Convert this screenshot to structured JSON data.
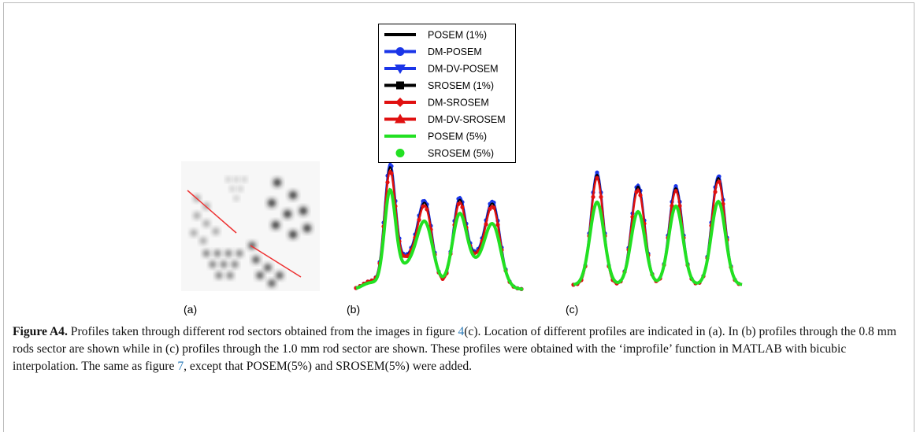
{
  "figure": {
    "legend": [
      "POSEM (1%)",
      "DM-POSEM",
      "DM-DV-POSEM",
      "SROSEM (1%)",
      "DM-SROSEM",
      "DM-DV-SROSEM",
      "POSEM (5%)",
      "SROSEM (5%)"
    ],
    "panel_labels": [
      "(a)",
      "(b)",
      "(c)"
    ],
    "caption": {
      "label": "Figure A4.",
      "parts": [
        " Profiles taken through different rod sectors obtained from the images in figure ",
        "4",
        "(c). Location of different profiles are indicated in (a). In (b) profiles through the 0.8 mm rods sector are shown while in (c) profiles through the 1.0 mm rod sector are shown. These profiles were obtained with the ‘improfile’ function in MATLAB with bicubic interpolation. The same as figure ",
        "7",
        ", except that POSEM(5%) and SROSEM(5%) were added."
      ]
    }
  }
}
